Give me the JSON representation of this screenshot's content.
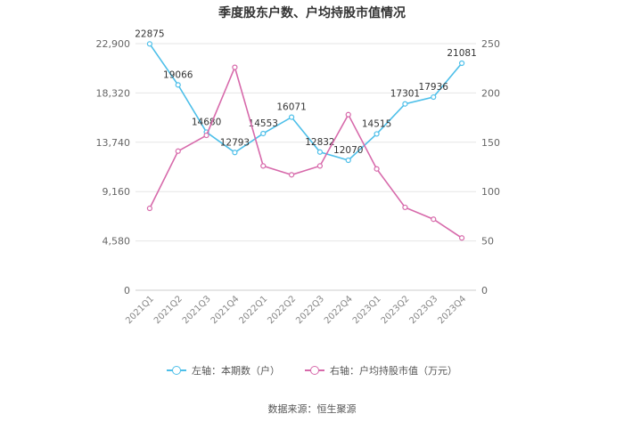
{
  "title": "季度股东户数、户均持股市值情况",
  "source": "数据来源：恒生聚源",
  "chart_data": {
    "type": "line",
    "categories": [
      "2021Q1",
      "2021Q2",
      "2021Q3",
      "2021Q4",
      "2022Q1",
      "2022Q2",
      "2022Q3",
      "2022Q4",
      "2023Q1",
      "2023Q2",
      "2023Q3",
      "2023Q4"
    ],
    "series": [
      {
        "name": "左轴：本期数（户）",
        "axis": "left",
        "color": "#4dbfe9",
        "values": [
          22875,
          19066,
          14680,
          12793,
          14553,
          16071,
          12832,
          12070,
          14515,
          17301,
          17936,
          21081
        ],
        "labels": [
          "22875",
          "19066",
          "14680",
          "12793",
          "14553",
          "16071",
          "12832",
          "12070",
          "14515",
          "17301",
          "17936",
          "21081"
        ]
      },
      {
        "name": "右轴：户均持股市值（万元）",
        "axis": "right",
        "color": "#d76aab",
        "values": [
          83,
          141,
          157,
          226,
          126,
          117,
          126,
          178,
          123,
          84,
          72,
          53
        ]
      }
    ],
    "left_axis": {
      "min": 0,
      "max": 22900,
      "ticks": [
        0,
        4580,
        9160,
        13740,
        18320,
        22900
      ],
      "tick_labels": [
        "0",
        "4,580",
        "9,160",
        "13,740",
        "18,320",
        "22,900"
      ]
    },
    "right_axis": {
      "min": 0,
      "max": 250,
      "ticks": [
        0,
        50,
        100,
        150,
        200,
        250
      ],
      "tick_labels": [
        "0",
        "50",
        "100",
        "150",
        "200",
        "250"
      ]
    },
    "grid": true,
    "legend_position": "bottom"
  }
}
